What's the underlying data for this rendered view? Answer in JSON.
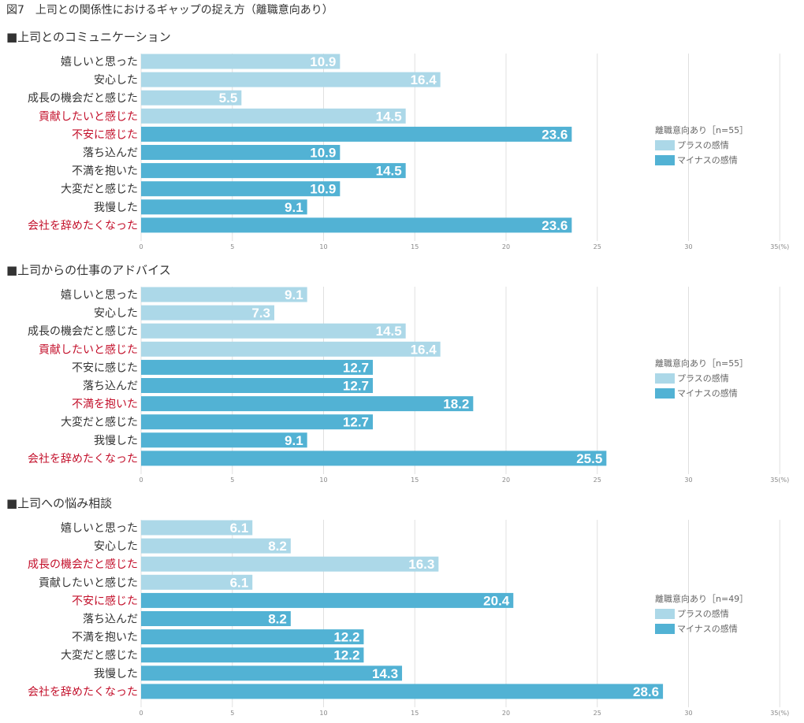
{
  "figure_title": "図7　上司との関係性におけるギャップの捉え方（離職意向あり）",
  "legend_labels": {
    "plus": "プラスの感情",
    "minus": "マイナスの感情"
  },
  "colors": {
    "plus": "#acd8e8",
    "minus": "#52b2d4",
    "highlight_text": "#c3102b",
    "normal_text": "#333333",
    "grid": "#e0e0e0"
  },
  "axis": {
    "ticks": [
      "0",
      "5",
      "10",
      "15",
      "20",
      "25",
      "30",
      "35(%)"
    ],
    "max": 35
  },
  "chart_data": [
    {
      "type": "bar",
      "orientation": "horizontal",
      "title": "■上司とのコミュニケーション",
      "legend_title": "離職意向あり［n=55］",
      "categories": [
        "嬉しいと思った",
        "安心した",
        "成長の機会だと感じた",
        "貢献したいと感じた",
        "不安に感じた",
        "落ち込んだ",
        "不満を抱いた",
        "大変だと感じた",
        "我慢した",
        "会社を辞めたくなった"
      ],
      "values": [
        10.9,
        16.4,
        5.5,
        14.5,
        23.6,
        10.9,
        14.5,
        10.9,
        9.1,
        23.6
      ],
      "sentiment": [
        "plus",
        "plus",
        "plus",
        "plus",
        "minus",
        "minus",
        "minus",
        "minus",
        "minus",
        "minus"
      ],
      "highlighted": [
        false,
        false,
        false,
        true,
        true,
        false,
        false,
        false,
        false,
        true
      ],
      "xlim": [
        0,
        35
      ],
      "xlabel": "(%)"
    },
    {
      "type": "bar",
      "orientation": "horizontal",
      "title": "■上司からの仕事のアドバイス",
      "legend_title": "離職意向あり［n=55］",
      "categories": [
        "嬉しいと思った",
        "安心した",
        "成長の機会だと感じた",
        "貢献したいと感じた",
        "不安に感じた",
        "落ち込んだ",
        "不満を抱いた",
        "大変だと感じた",
        "我慢した",
        "会社を辞めたくなった"
      ],
      "values": [
        9.1,
        7.3,
        14.5,
        16.4,
        12.7,
        12.7,
        18.2,
        12.7,
        9.1,
        25.5
      ],
      "sentiment": [
        "plus",
        "plus",
        "plus",
        "plus",
        "minus",
        "minus",
        "minus",
        "minus",
        "minus",
        "minus"
      ],
      "highlighted": [
        false,
        false,
        false,
        true,
        false,
        false,
        true,
        false,
        false,
        true
      ],
      "xlim": [
        0,
        35
      ],
      "xlabel": "(%)"
    },
    {
      "type": "bar",
      "orientation": "horizontal",
      "title": "■上司への悩み相談",
      "legend_title": "離職意向あり［n=49］",
      "categories": [
        "嬉しいと思った",
        "安心した",
        "成長の機会だと感じた",
        "貢献したいと感じた",
        "不安に感じた",
        "落ち込んだ",
        "不満を抱いた",
        "大変だと感じた",
        "我慢した",
        "会社を辞めたくなった"
      ],
      "values": [
        6.1,
        8.2,
        16.3,
        6.1,
        20.4,
        8.2,
        12.2,
        12.2,
        14.3,
        28.6
      ],
      "sentiment": [
        "plus",
        "plus",
        "plus",
        "plus",
        "minus",
        "minus",
        "minus",
        "minus",
        "minus",
        "minus"
      ],
      "highlighted": [
        false,
        false,
        true,
        false,
        true,
        false,
        false,
        false,
        false,
        true
      ],
      "xlim": [
        0,
        35
      ],
      "xlabel": "(%)"
    }
  ]
}
